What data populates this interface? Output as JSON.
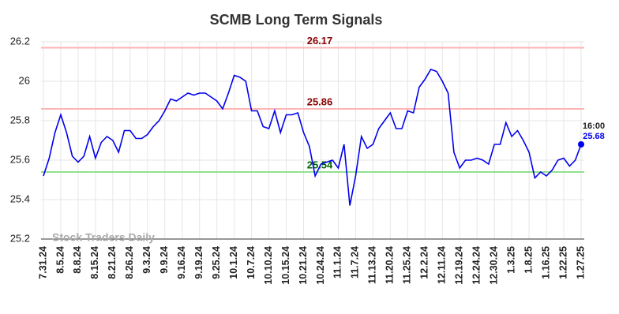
{
  "chart_data": {
    "type": "line",
    "title": "SCMB Long Term Signals",
    "watermark": "Stock Traders Daily",
    "categories": [
      "7.31.24",
      null,
      null,
      "8.5.24",
      null,
      null,
      "8.8.24",
      null,
      null,
      "8.15.24",
      null,
      null,
      "8.21.24",
      null,
      null,
      "8.26.24",
      null,
      null,
      "9.3.24",
      null,
      null,
      "9.9.24",
      null,
      null,
      "9.16.24",
      null,
      null,
      "9.19.24",
      null,
      null,
      "9.25.24",
      null,
      null,
      "10.1.24",
      null,
      null,
      "10.7.24",
      null,
      null,
      "10.10.24",
      null,
      null,
      "10.15.24",
      null,
      null,
      "10.21.24",
      null,
      null,
      "10.24.24",
      null,
      null,
      "11.1.24",
      null,
      null,
      "11.7.24",
      null,
      null,
      "11.13.24",
      null,
      null,
      "11.20.24",
      null,
      null,
      "11.25.24",
      null,
      null,
      "12.2.24",
      null,
      null,
      "12.11.24",
      null,
      null,
      "12.19.24",
      null,
      null,
      "12.24.24",
      null,
      null,
      "12.30.24",
      null,
      null,
      "1.3.25",
      null,
      null,
      "1.8.25",
      null,
      null,
      "1.16.25",
      null,
      null,
      "1.22.25",
      null,
      null,
      "1.27.25"
    ],
    "series": [
      {
        "color": "#0000ee",
        "values": [
          25.52,
          25.61,
          25.74,
          25.83,
          25.74,
          25.62,
          25.59,
          25.62,
          25.72,
          25.61,
          25.69,
          25.72,
          25.7,
          25.64,
          25.75,
          25.75,
          25.71,
          25.71,
          25.73,
          25.77,
          25.8,
          25.85,
          25.91,
          25.9,
          25.92,
          25.94,
          25.93,
          25.94,
          25.94,
          25.92,
          25.9,
          25.86,
          25.94,
          26.03,
          26.02,
          26.0,
          25.85,
          25.85,
          25.77,
          25.76,
          25.85,
          25.74,
          25.83,
          25.83,
          25.84,
          25.74,
          25.67,
          25.52,
          25.58,
          25.59,
          25.6,
          25.56,
          25.68,
          25.37,
          25.52,
          25.72,
          25.66,
          25.68,
          25.76,
          25.8,
          25.84,
          25.76,
          25.76,
          25.85,
          25.84,
          25.97,
          26.01,
          26.06,
          26.05,
          26.0,
          25.94,
          25.64,
          25.56,
          25.6,
          25.6,
          25.61,
          25.6,
          25.58,
          25.68,
          25.68,
          25.79,
          25.72,
          25.75,
          25.7,
          25.64,
          25.51,
          25.54,
          25.52,
          25.55,
          25.6,
          25.61,
          25.57,
          25.6,
          25.68
        ]
      }
    ],
    "hlines": [
      {
        "value": 26.17,
        "color": "#ffb3b3",
        "label_color": "#8b0000"
      },
      {
        "value": 25.86,
        "color": "#ffb3b3",
        "label_color": "#8b0000"
      },
      {
        "value": 25.54,
        "color": "#90e090",
        "label_color": "#006400"
      }
    ],
    "end_label": {
      "time": "16:00"
    },
    "ylim": [
      25.2,
      26.2
    ],
    "yticks": [
      25.2,
      25.4,
      25.6,
      25.8,
      26,
      26.2
    ],
    "grid": true
  }
}
